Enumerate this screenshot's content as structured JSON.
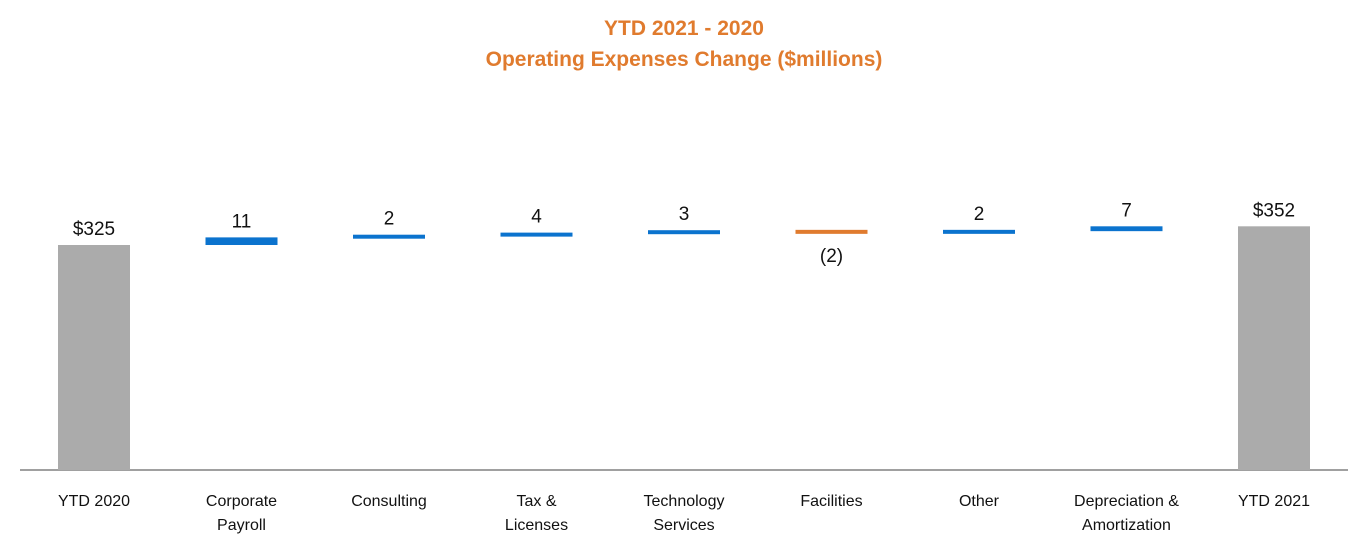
{
  "chart_data": {
    "type": "bar",
    "subtype": "waterfall",
    "title": "YTD 2021 - 2020",
    "subtitle": "Operating Expenses Change ($millions)",
    "title_color": "#E07B2E",
    "categories": [
      [
        "YTD 2020"
      ],
      [
        "Corporate",
        "Payroll"
      ],
      [
        "Consulting"
      ],
      [
        "Tax &",
        "Licenses"
      ],
      [
        "Technology",
        "Services"
      ],
      [
        "Facilities"
      ],
      [
        "Other"
      ],
      [
        "Depreciation &",
        "Amortization"
      ],
      [
        "YTD 2021"
      ]
    ],
    "bars": [
      {
        "kind": "total",
        "value": 325,
        "label": "$325"
      },
      {
        "kind": "delta",
        "value": 11,
        "label": "11"
      },
      {
        "kind": "delta",
        "value": 2,
        "label": "2"
      },
      {
        "kind": "delta",
        "value": 4,
        "label": "4"
      },
      {
        "kind": "delta",
        "value": 3,
        "label": "3"
      },
      {
        "kind": "delta",
        "value": -2,
        "label": "(2)"
      },
      {
        "kind": "delta",
        "value": 2,
        "label": "2"
      },
      {
        "kind": "delta",
        "value": 7,
        "label": "7"
      },
      {
        "kind": "total",
        "value": 352,
        "label": "$352"
      }
    ],
    "colors": {
      "total": "#ABABAB",
      "increase": "#0B73CE",
      "decrease": "#E07B2E",
      "axis": "#A0A0A0"
    },
    "grid": false,
    "legend": "none"
  }
}
